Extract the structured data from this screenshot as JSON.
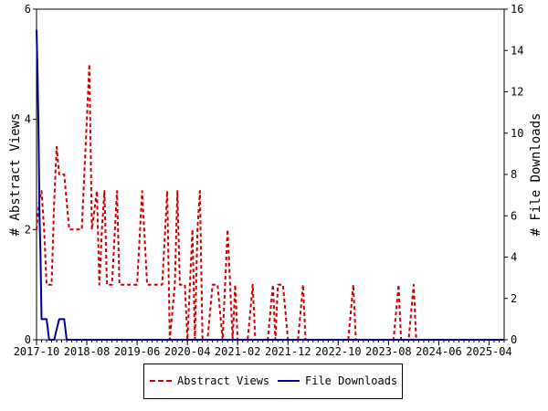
{
  "chart_data": {
    "type": "line",
    "y_left_label": "# Abstract Views",
    "y_right_label": "# File Downloads",
    "y_left_range": [
      0,
      6
    ],
    "y_right_range": [
      0,
      16
    ],
    "y_left_ticks": [
      "0",
      "2",
      "4",
      "6"
    ],
    "y_right_ticks": [
      "0",
      "2",
      "4",
      "6",
      "8",
      "10",
      "12",
      "14",
      "16"
    ],
    "x_tick_labels": [
      "2017-10",
      "2018-08",
      "2019-06",
      "2020-04",
      "2021-02",
      "2021-12",
      "2022-10",
      "2023-08",
      "2024-06",
      "2025-04"
    ],
    "x_domain_months": [
      0,
      93
    ],
    "grid": false,
    "legend_position": "bottom",
    "colors": {
      "abstract_views": "#cc0000",
      "file_downloads": "#000099"
    },
    "series": [
      {
        "name": "Abstract Views",
        "axis": "left",
        "style": "dashed",
        "points": [
          [
            0,
            2
          ],
          [
            0.5,
            2.5
          ],
          [
            1,
            2.7
          ],
          [
            1.5,
            2
          ],
          [
            2,
            1
          ],
          [
            3,
            1
          ],
          [
            3.5,
            2.5
          ],
          [
            4,
            3.5
          ],
          [
            4.5,
            3
          ],
          [
            5.5,
            3
          ],
          [
            6.5,
            2
          ],
          [
            9,
            2
          ],
          [
            10,
            4
          ],
          [
            10.5,
            5
          ],
          [
            11,
            2
          ],
          [
            12,
            2.7
          ],
          [
            12.5,
            1
          ],
          [
            13,
            2
          ],
          [
            13.5,
            2.7
          ],
          [
            14,
            1
          ],
          [
            15,
            1
          ],
          [
            16,
            2.7
          ],
          [
            16.5,
            1
          ],
          [
            20,
            1
          ],
          [
            21,
            2.7
          ],
          [
            22,
            1
          ],
          [
            25,
            1
          ],
          [
            26,
            2.7
          ],
          [
            26.5,
            0
          ],
          [
            27.5,
            1
          ],
          [
            28,
            2.7
          ],
          [
            28.5,
            1
          ],
          [
            29.5,
            1
          ],
          [
            30,
            0
          ],
          [
            31,
            2
          ],
          [
            31.5,
            0
          ],
          [
            32,
            2
          ],
          [
            32.5,
            2.7
          ],
          [
            33,
            0
          ],
          [
            34,
            0
          ],
          [
            35,
            1
          ],
          [
            36,
            1
          ],
          [
            37,
            0
          ],
          [
            38,
            2
          ],
          [
            39,
            0
          ],
          [
            39.5,
            1
          ],
          [
            40,
            0
          ],
          [
            42,
            0
          ],
          [
            43,
            1
          ],
          [
            43.5,
            0
          ],
          [
            46,
            0
          ],
          [
            47,
            1
          ],
          [
            47.5,
            0
          ],
          [
            48,
            1
          ],
          [
            49,
            1
          ],
          [
            50,
            0
          ],
          [
            52,
            0
          ],
          [
            53,
            1
          ],
          [
            53.5,
            0
          ],
          [
            62,
            0
          ],
          [
            63,
            1
          ],
          [
            63.5,
            0
          ],
          [
            71,
            0
          ],
          [
            72,
            1
          ],
          [
            72.5,
            0
          ],
          [
            74,
            0
          ],
          [
            75,
            1
          ],
          [
            75.5,
            0
          ],
          [
            93,
            0
          ]
        ]
      },
      {
        "name": "File Downloads",
        "axis": "right",
        "style": "solid",
        "points": [
          [
            0,
            15
          ],
          [
            0.2,
            13
          ],
          [
            0.4,
            10
          ],
          [
            0.6,
            6
          ],
          [
            0.8,
            4
          ],
          [
            1,
            1
          ],
          [
            2,
            1
          ],
          [
            2.5,
            0
          ],
          [
            3,
            0
          ],
          [
            3.5,
            0
          ],
          [
            4.5,
            1
          ],
          [
            5.5,
            1
          ],
          [
            6,
            0
          ],
          [
            93,
            0
          ]
        ]
      }
    ]
  }
}
